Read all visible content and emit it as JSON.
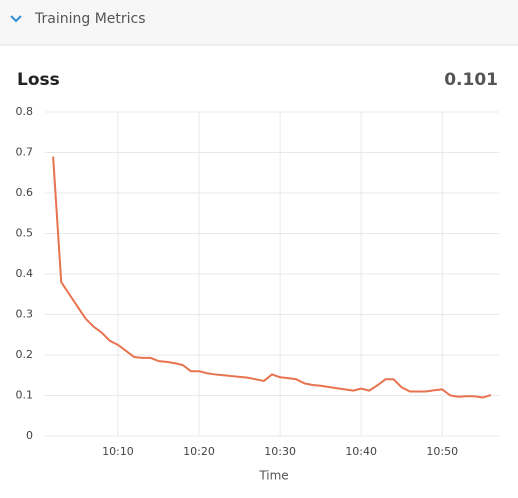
{
  "header": {
    "title": "Training Metrics"
  },
  "chart_data": {
    "type": "line",
    "title": "Loss",
    "current_value": 0.101,
    "x_label": "Time",
    "x": [
      "10:02",
      "10:03",
      "10:04",
      "10:05",
      "10:06",
      "10:07",
      "10:08",
      "10:09",
      "10:10",
      "10:11",
      "10:12",
      "10:13",
      "10:14",
      "10:15",
      "10:16",
      "10:17",
      "10:18",
      "10:19",
      "10:20",
      "10:21",
      "10:22",
      "10:23",
      "10:24",
      "10:25",
      "10:26",
      "10:27",
      "10:28",
      "10:29",
      "10:30",
      "10:31",
      "10:32",
      "10:33",
      "10:34",
      "10:35",
      "10:36",
      "10:37",
      "10:38",
      "10:39",
      "10:40",
      "10:41",
      "10:42",
      "10:43",
      "10:44",
      "10:45",
      "10:46",
      "10:47",
      "10:48",
      "10:49",
      "10:50",
      "10:51",
      "10:52",
      "10:53",
      "10:54",
      "10:55",
      "10:56"
    ],
    "series": [
      {
        "name": "Loss",
        "color": "#e8734f",
        "values": [
          0.69,
          0.38,
          0.35,
          0.32,
          0.29,
          0.27,
          0.255,
          0.235,
          0.225,
          0.21,
          0.195,
          0.193,
          0.193,
          0.185,
          0.183,
          0.18,
          0.175,
          0.16,
          0.16,
          0.155,
          0.152,
          0.15,
          0.148,
          0.146,
          0.144,
          0.14,
          0.136,
          0.152,
          0.145,
          0.143,
          0.14,
          0.13,
          0.126,
          0.124,
          0.121,
          0.118,
          0.115,
          0.112,
          0.117,
          0.112,
          0.125,
          0.14,
          0.14,
          0.12,
          0.11,
          0.11,
          0.11,
          0.113,
          0.115,
          0.1,
          0.097,
          0.098,
          0.098,
          0.095,
          0.101
        ]
      }
    ],
    "xlim": [
      "10:01",
      "10:57"
    ],
    "xticks": [
      "10:10",
      "10:20",
      "10:30",
      "10:40",
      "10:50"
    ],
    "ylim": [
      0,
      0.8
    ],
    "yticks": [
      0,
      0.1,
      0.2,
      0.3,
      0.4,
      0.5,
      0.6,
      0.7,
      0.8
    ],
    "grid": true
  }
}
